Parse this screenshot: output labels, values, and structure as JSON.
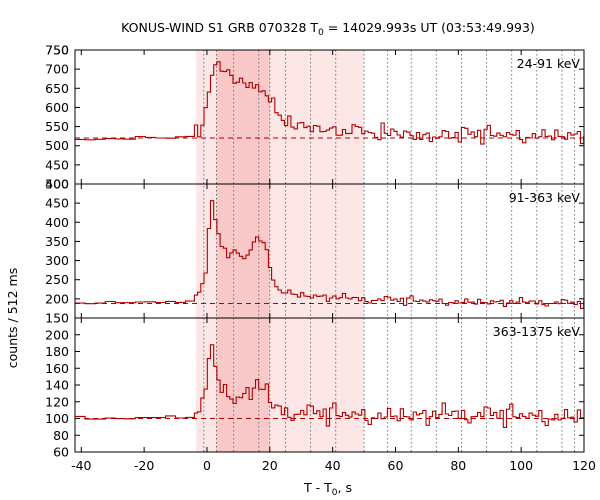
{
  "chart_data": {
    "type": "line",
    "title": "KONUS-WIND S1 GRB 070328 T",
    "title_sub": "0",
    "title_rest": " = 14029.993s UT (03:53:49.993)",
    "xlabel": "T - T",
    "xlabel_sub": "0",
    "xlabel_rest": ", s",
    "ylabel": "counts / 512 ms",
    "xlim": [
      -42,
      120
    ],
    "xticks": [
      -40,
      -20,
      0,
      20,
      40,
      60,
      80,
      100,
      120
    ],
    "bin_width_s": 0.512,
    "colors": {
      "series": "#b00000",
      "light_band": "#fde6e6",
      "dark_band": "#f9c8c8",
      "background_line": "#b00000",
      "vlines": "#555555"
    },
    "shaded_intervals": [
      {
        "name": "light",
        "start": -3.5,
        "end": 50
      },
      {
        "name": "dark",
        "start": 3,
        "end": 20
      }
    ],
    "vertical_markers": [
      -1,
      3,
      8.5,
      16.5,
      20,
      25,
      33,
      41,
      50,
      57.5,
      65,
      73,
      81,
      89,
      97,
      105,
      113,
      117
    ],
    "panels": [
      {
        "name": "24-91 keV",
        "label": "24-91 keV",
        "ylim": [
          400,
          750
        ],
        "yticks": [
          400,
          450,
          500,
          550,
          600,
          650,
          700,
          750
        ],
        "background": 520,
        "profile": [
          {
            "t": -42,
            "v": 518
          },
          {
            "t": -22,
            "v": 520
          },
          {
            "t": -6,
            "v": 522
          },
          {
            "t": -2,
            "v": 540
          },
          {
            "t": -0.5,
            "v": 580
          },
          {
            "t": 0.3,
            "v": 640
          },
          {
            "t": 1.5,
            "v": 680
          },
          {
            "t": 3,
            "v": 700
          },
          {
            "t": 5,
            "v": 705
          },
          {
            "t": 8,
            "v": 690
          },
          {
            "t": 11,
            "v": 660
          },
          {
            "t": 14,
            "v": 665
          },
          {
            "t": 17,
            "v": 650
          },
          {
            "t": 19.5,
            "v": 635
          },
          {
            "t": 21,
            "v": 600
          },
          {
            "t": 24,
            "v": 570
          },
          {
            "t": 30,
            "v": 555
          },
          {
            "t": 40,
            "v": 542
          },
          {
            "t": 50,
            "v": 533
          },
          {
            "t": 70,
            "v": 527
          },
          {
            "t": 120,
            "v": 524
          }
        ],
        "noise": 16,
        "noise_pre": 3
      },
      {
        "name": "91-363 keV",
        "label": "91-363 keV",
        "ylim": [
          150,
          500
        ],
        "yticks": [
          150,
          200,
          250,
          300,
          350,
          400,
          450,
          500
        ],
        "background": 188,
        "profile": [
          {
            "t": -42,
            "v": 187
          },
          {
            "t": -22,
            "v": 190
          },
          {
            "t": -6,
            "v": 192
          },
          {
            "t": -2,
            "v": 220
          },
          {
            "t": -0.5,
            "v": 260
          },
          {
            "t": 0.3,
            "v": 330
          },
          {
            "t": 0.8,
            "v": 400
          },
          {
            "t": 1.3,
            "v": 460
          },
          {
            "t": 2.3,
            "v": 420
          },
          {
            "t": 3.5,
            "v": 370
          },
          {
            "t": 5,
            "v": 330
          },
          {
            "t": 8,
            "v": 310
          },
          {
            "t": 10,
            "v": 320
          },
          {
            "t": 12,
            "v": 300
          },
          {
            "t": 14,
            "v": 330
          },
          {
            "t": 16,
            "v": 360
          },
          {
            "t": 18,
            "v": 340
          },
          {
            "t": 19.5,
            "v": 330
          },
          {
            "t": 20.5,
            "v": 260
          },
          {
            "t": 23,
            "v": 220
          },
          {
            "t": 30,
            "v": 208
          },
          {
            "t": 50,
            "v": 196
          },
          {
            "t": 120,
            "v": 186
          }
        ],
        "noise": 8,
        "noise_pre": 2.5
      },
      {
        "name": "363-1375 keV",
        "label": "363-1375 keV",
        "ylim": [
          60,
          220
        ],
        "yticks": [
          60,
          80,
          100,
          120,
          140,
          160,
          180,
          200
        ],
        "background": 100,
        "profile": [
          {
            "t": -42,
            "v": 99
          },
          {
            "t": -22,
            "v": 100
          },
          {
            "t": -6,
            "v": 102
          },
          {
            "t": -2,
            "v": 112
          },
          {
            "t": -0.5,
            "v": 135
          },
          {
            "t": 0.5,
            "v": 170
          },
          {
            "t": 1.2,
            "v": 185
          },
          {
            "t": 2.2,
            "v": 170
          },
          {
            "t": 4,
            "v": 140
          },
          {
            "t": 7,
            "v": 125
          },
          {
            "t": 10,
            "v": 120
          },
          {
            "t": 13,
            "v": 130
          },
          {
            "t": 16,
            "v": 140
          },
          {
            "t": 18.5,
            "v": 130
          },
          {
            "t": 20.5,
            "v": 112
          },
          {
            "t": 25,
            "v": 105
          },
          {
            "t": 40,
            "v": 103
          },
          {
            "t": 120,
            "v": 101
          }
        ],
        "noise": 9,
        "noise_pre": 2
      }
    ]
  }
}
